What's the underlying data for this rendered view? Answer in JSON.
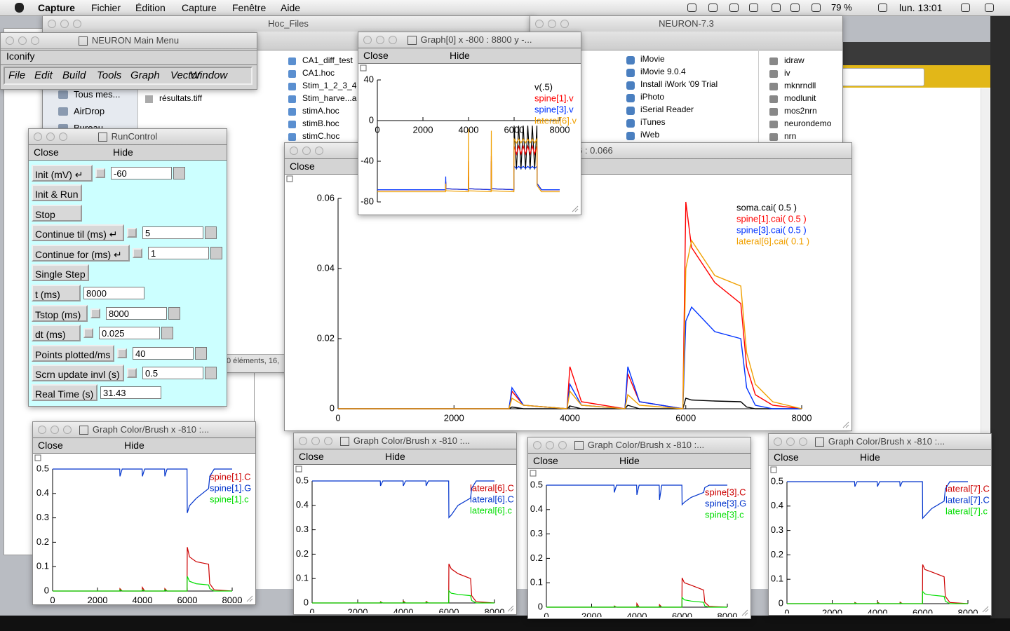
{
  "menubar": {
    "app": "Capture",
    "items": [
      "Fichier",
      "Édition",
      "Capture",
      "Fenêtre",
      "Aide"
    ],
    "battery": "79 %",
    "clock": "lun. 13:01"
  },
  "finder_hoc": {
    "title": "Hoc_Files",
    "sidebar": [
      "Tous mes...",
      "AirDrop",
      "Bureau"
    ],
    "files": [
      "CA1_diff_test",
      "CA1.hoc",
      "Stim_1_2_3_4",
      "Stim_harve...a",
      "stimA.hoc",
      "stimB.hoc",
      "stimC.hoc"
    ],
    "other_files": [
      "résultats.tiff"
    ],
    "status": "0 éléments, 16,"
  },
  "finder_neuron": {
    "title": "NEURON-7.3",
    "apps": [
      "iMovie",
      "iMovie 9.0.4",
      "Install iWork '09 Trial",
      "iPhoto",
      "iSerial Reader",
      "iTunes",
      "iWeb"
    ],
    "bin": [
      "idraw",
      "iv",
      "mknrndll",
      "modlunit",
      "mos2nrn",
      "neurondemo",
      "nrn"
    ]
  },
  "main_menu": {
    "title": "NEURON Main Menu",
    "iconify": "Iconify",
    "menus": [
      "File",
      "Edit",
      "Build",
      "Tools",
      "Graph",
      "Vector",
      "Window"
    ]
  },
  "run_control": {
    "title": "RunControl",
    "close": "Close",
    "hide": "Hide",
    "rows": [
      {
        "label": "Init (mV) ↵",
        "value": "-60"
      },
      {
        "label": "Init & Run"
      },
      {
        "label": "Stop"
      },
      {
        "label": "Continue til (ms) ↵",
        "value": "5"
      },
      {
        "label": "Continue for (ms) ↵",
        "value": "1"
      },
      {
        "label": "Single Step"
      },
      {
        "label": "t (ms)",
        "value": "8000"
      },
      {
        "label": "Tstop (ms)",
        "value": "8000"
      },
      {
        "label": "dt (ms)",
        "value": "0.025"
      },
      {
        "label": "Points plotted/ms",
        "value": "40"
      },
      {
        "label": "Scrn update invl (s)",
        "value": "0.5"
      },
      {
        "label": "Real Time (s)",
        "value": "31.43"
      }
    ]
  },
  "graph0": {
    "title": "Graph[0]  x -800 : 8800  y -...",
    "close": "Close",
    "hide": "Hide",
    "xlim": [
      0,
      8000
    ],
    "ylim": [
      -80,
      40
    ],
    "xticks": [
      0,
      2000,
      4000,
      6000,
      8000
    ],
    "yticks": [
      40,
      0,
      -40,
      -80
    ],
    "x": [
      0,
      2990,
      3000,
      3010,
      3990,
      4000,
      4010,
      4990,
      5000,
      5010,
      5990,
      6000,
      6100,
      6200,
      6300,
      6400,
      6500,
      6600,
      6700,
      6800,
      6900,
      7000,
      7010,
      7200,
      8000
    ],
    "series": [
      {
        "name": "v(.5)",
        "color": "#000000",
        "values": [
          -68,
          -68,
          -60,
          -67,
          -68,
          -55,
          -67,
          -68,
          -40,
          -67,
          -68,
          -5,
          -48,
          -5,
          -48,
          -5,
          -48,
          -5,
          -48,
          -5,
          -48,
          -5,
          -62,
          -68,
          -68
        ]
      },
      {
        "name": "spine[1].v",
        "color": "#ff0000",
        "values": [
          -68,
          -68,
          -60,
          -67,
          -68,
          -40,
          -67,
          -68,
          -35,
          -67,
          -68,
          -25,
          -33,
          -25,
          -33,
          -25,
          -33,
          -25,
          -33,
          -25,
          -33,
          -25,
          -62,
          -68,
          -68
        ]
      },
      {
        "name": "spine[3].v",
        "color": "#0033ff",
        "values": [
          -68,
          -68,
          -55,
          -67,
          -68,
          -62,
          -67,
          -68,
          -58,
          -67,
          -68,
          -45,
          -47,
          -45,
          -47,
          -45,
          -47,
          -45,
          -47,
          -45,
          -47,
          -45,
          -62,
          -68,
          -68
        ]
      },
      {
        "name": "lateral[6].v",
        "color": "#f0a000",
        "values": [
          -70,
          -70,
          -62,
          -69,
          -70,
          -8,
          -69,
          -70,
          -10,
          -69,
          -70,
          -18,
          -22,
          -18,
          -22,
          -18,
          -22,
          -18,
          -22,
          -18,
          -22,
          -18,
          -64,
          -70,
          -70
        ]
      }
    ]
  },
  "graph1": {
    "title": "10  y -0.006 : 0.066",
    "close": "Close",
    "xlim": [
      0,
      8000
    ],
    "ylim": [
      0,
      0.06
    ],
    "xticks": [
      0,
      2000,
      4000,
      6000,
      8000
    ],
    "yticks": [
      0,
      0.02,
      0.04,
      0.06
    ],
    "x": [
      0,
      2950,
      3000,
      3200,
      3950,
      4000,
      4200,
      4950,
      5000,
      5200,
      5950,
      6000,
      6100,
      6500,
      6950,
      7050,
      7200,
      7500,
      8000
    ],
    "series": [
      {
        "name": "soma.cai( 0.5 )",
        "color": "#000000",
        "values": [
          0,
          0,
          0.0005,
          0,
          0,
          0.0008,
          0,
          0,
          0.001,
          0,
          0,
          0.003,
          0.0025,
          0.0022,
          0.002,
          0.0005,
          0,
          0,
          0
        ]
      },
      {
        "name": "spine[1].cai( 0.5 )",
        "color": "#ff0000",
        "values": [
          0,
          0,
          0.005,
          0.001,
          0,
          0.012,
          0.002,
          0,
          0.01,
          0.002,
          0,
          0.059,
          0.046,
          0.036,
          0.03,
          0.012,
          0.004,
          0.001,
          0
        ]
      },
      {
        "name": "spine[3].cai( 0.5 )",
        "color": "#0033ff",
        "values": [
          0,
          0,
          0.006,
          0.001,
          0,
          0.007,
          0.001,
          0,
          0.012,
          0.002,
          0,
          0.025,
          0.029,
          0.022,
          0.02,
          0.006,
          0.001,
          0,
          0
        ]
      },
      {
        "name": "lateral[6].cai( 0.1 )",
        "color": "#f0a000",
        "values": [
          0,
          0,
          0.003,
          0.001,
          0,
          0.005,
          0.001,
          0,
          0.004,
          0.001,
          0,
          0.04,
          0.048,
          0.038,
          0.035,
          0.016,
          0.007,
          0.002,
          0
        ]
      }
    ]
  },
  "brush_graphs": [
    {
      "title": "Graph Color/Brush x -810 :...",
      "close": "Close",
      "hide": "Hide",
      "xlim": [
        0,
        8000
      ],
      "ylim": [
        0,
        0.5
      ],
      "xticks": [
        0,
        2000,
        4000,
        6000,
        8000
      ],
      "yticks": [
        0,
        0.1,
        0.2,
        0.3,
        0.4,
        0.5
      ],
      "x": [
        0,
        2990,
        3000,
        3100,
        3990,
        4000,
        4100,
        4990,
        5000,
        5100,
        5990,
        6000,
        6100,
        6400,
        6950,
        7000,
        7200,
        8000
      ],
      "series": [
        {
          "name": "spine[1].C",
          "color": "#cc0000",
          "values": [
            0,
            0,
            0.01,
            0,
            0,
            0.015,
            0,
            0,
            0.01,
            0,
            0,
            0.18,
            0.14,
            0.12,
            0.11,
            0.03,
            0.005,
            0
          ]
        },
        {
          "name": "spine[1].G",
          "color": "#0033cc",
          "values": [
            0.5,
            0.5,
            0.47,
            0.5,
            0.5,
            0.47,
            0.5,
            0.5,
            0.47,
            0.5,
            0.5,
            0.32,
            0.35,
            0.38,
            0.42,
            0.47,
            0.5,
            0.5
          ]
        },
        {
          "name": "spine[1].c",
          "color": "#00dd00",
          "values": [
            0,
            0,
            0.005,
            0,
            0,
            0.005,
            0,
            0,
            0.005,
            0,
            0,
            0.06,
            0.04,
            0.03,
            0.025,
            0.01,
            0,
            0
          ]
        }
      ]
    },
    {
      "title": "Graph Color/Brush x -810 :...",
      "close": "Close",
      "hide": "Hide",
      "xlim": [
        0,
        8000
      ],
      "ylim": [
        0,
        0.5
      ],
      "xticks": [
        0,
        2000,
        4000,
        6000,
        8000
      ],
      "yticks": [
        0,
        0.1,
        0.2,
        0.3,
        0.4,
        0.5
      ],
      "x": [
        0,
        2990,
        3000,
        3100,
        3990,
        4000,
        4100,
        4990,
        5000,
        5100,
        5990,
        6000,
        6100,
        6400,
        6950,
        7000,
        7200,
        8000
      ],
      "series": [
        {
          "name": "lateral[6].C",
          "color": "#cc0000",
          "values": [
            0,
            0,
            0.005,
            0,
            0,
            0.008,
            0,
            0,
            0.006,
            0,
            0,
            0.16,
            0.14,
            0.12,
            0.1,
            0.03,
            0.005,
            0
          ]
        },
        {
          "name": "lateral[6].C",
          "color": "#0033cc",
          "values": [
            0.5,
            0.5,
            0.48,
            0.5,
            0.5,
            0.48,
            0.5,
            0.5,
            0.48,
            0.5,
            0.5,
            0.35,
            0.36,
            0.4,
            0.43,
            0.47,
            0.5,
            0.5
          ]
        },
        {
          "name": "lateral[6].c",
          "color": "#00dd00",
          "values": [
            0,
            0,
            0.003,
            0,
            0,
            0.004,
            0,
            0,
            0.003,
            0,
            0,
            0.05,
            0.04,
            0.035,
            0.03,
            0.01,
            0,
            0
          ]
        }
      ]
    },
    {
      "title": "Graph Color/Brush x -810 :...",
      "close": "Close",
      "hide": "Hide",
      "xlim": [
        0,
        8000
      ],
      "ylim": [
        0,
        0.5
      ],
      "xticks": [
        0,
        2000,
        4000,
        6000,
        8000
      ],
      "yticks": [
        0,
        0.1,
        0.2,
        0.3,
        0.4,
        0.5
      ],
      "x": [
        0,
        2990,
        3000,
        3100,
        3990,
        4000,
        4100,
        4990,
        5000,
        5100,
        5990,
        6000,
        6100,
        6400,
        6950,
        7000,
        7200,
        8000
      ],
      "series": [
        {
          "name": "spine[3].C",
          "color": "#cc0000",
          "values": [
            0,
            0,
            0.005,
            0,
            0,
            0.015,
            0,
            0,
            0.01,
            0,
            0,
            0.12,
            0.1,
            0.09,
            0.07,
            0.02,
            0.003,
            0
          ]
        },
        {
          "name": "spine[3].G",
          "color": "#0033cc",
          "values": [
            0.5,
            0.5,
            0.47,
            0.5,
            0.5,
            0.46,
            0.5,
            0.5,
            0.44,
            0.5,
            0.5,
            0.42,
            0.43,
            0.45,
            0.47,
            0.49,
            0.5,
            0.5
          ]
        },
        {
          "name": "spine[3].c",
          "color": "#00dd00",
          "values": [
            0,
            0,
            0.003,
            0,
            0,
            0.005,
            0,
            0,
            0.004,
            0,
            0,
            0.04,
            0.03,
            0.025,
            0.02,
            0.005,
            0,
            0
          ]
        }
      ]
    },
    {
      "title": "Graph Color/Brush x -810 :...",
      "close": "Close",
      "hide": "Hide",
      "xlim": [
        0,
        8000
      ],
      "ylim": [
        0,
        0.5
      ],
      "xticks": [
        0,
        2000,
        4000,
        6000,
        8000
      ],
      "yticks": [
        0,
        0.1,
        0.2,
        0.3,
        0.4,
        0.5
      ],
      "x": [
        0,
        2990,
        3000,
        3100,
        3990,
        4000,
        4100,
        4990,
        5000,
        5100,
        5990,
        6000,
        6100,
        6400,
        6950,
        7000,
        7200,
        8000
      ],
      "series": [
        {
          "name": "lateral[7].C",
          "color": "#cc0000",
          "values": [
            0,
            0,
            0.005,
            0,
            0,
            0.007,
            0,
            0,
            0.006,
            0,
            0,
            0.16,
            0.14,
            0.13,
            0.11,
            0.03,
            0.005,
            0
          ]
        },
        {
          "name": "lateral[7].C",
          "color": "#0033cc",
          "values": [
            0.5,
            0.5,
            0.48,
            0.5,
            0.5,
            0.48,
            0.5,
            0.5,
            0.48,
            0.5,
            0.5,
            0.35,
            0.36,
            0.39,
            0.42,
            0.47,
            0.5,
            0.5
          ]
        },
        {
          "name": "lateral[7].c",
          "color": "#00dd00",
          "values": [
            0,
            0,
            0.003,
            0,
            0,
            0.004,
            0,
            0,
            0.003,
            0,
            0,
            0.05,
            0.04,
            0.035,
            0.03,
            0.01,
            0,
            0
          ]
        }
      ]
    }
  ]
}
